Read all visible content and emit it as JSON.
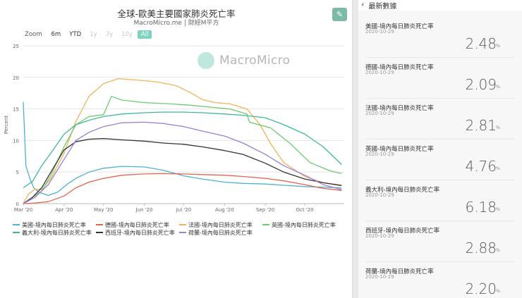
{
  "chart": {
    "title": "全球-歐美主要國家肺炎死亡率",
    "subtitle": "MacroMicro.me | 財經M平方",
    "edit_icon": "pencil-icon",
    "range_label": "Zoom",
    "range_buttons": [
      {
        "label": "6m",
        "state": "normal"
      },
      {
        "label": "YTD",
        "state": "normal"
      },
      {
        "label": "1y",
        "state": "disabled"
      },
      {
        "label": "3y",
        "state": "disabled"
      },
      {
        "label": "10y",
        "state": "disabled"
      },
      {
        "label": "All",
        "state": "active"
      }
    ],
    "watermark": "MacroMicro"
  },
  "chart_data": {
    "type": "line",
    "ylabel": "Percent",
    "ylim": [
      0,
      25
    ],
    "yticks": [
      "0",
      "5",
      "10",
      "15",
      "20",
      "25"
    ],
    "x_start": "2020-03-01",
    "x_end": "2020-10-31",
    "xticks": [
      {
        "label": "Mar '20",
        "date": "2020-03-01"
      },
      {
        "label": "Apr '20",
        "date": "2020-04-01"
      },
      {
        "label": "May '20",
        "date": "2020-05-01"
      },
      {
        "label": "Jun '20",
        "date": "2020-06-01"
      },
      {
        "label": "Jul '20",
        "date": "2020-07-01"
      },
      {
        "label": "Aug '20",
        "date": "2020-08-01"
      },
      {
        "label": "Sep '20",
        "date": "2020-09-01"
      },
      {
        "label": "Oct '20",
        "date": "2020-10-01"
      }
    ],
    "grid": true,
    "legend_position": "bottom",
    "series": [
      {
        "name": "美國-境內每日肺炎死亡率",
        "color": "#4fb0d5",
        "points": [
          [
            "2020-03-01",
            16.1
          ],
          [
            "2020-03-03",
            6.0
          ],
          [
            "2020-03-06",
            4.0
          ],
          [
            "2020-03-09",
            2.5
          ],
          [
            "2020-03-13",
            1.8
          ],
          [
            "2020-03-20",
            1.3
          ],
          [
            "2020-03-27",
            1.8
          ],
          [
            "2020-04-03",
            3.0
          ],
          [
            "2020-04-10",
            4.0
          ],
          [
            "2020-04-20",
            5.0
          ],
          [
            "2020-05-01",
            5.6
          ],
          [
            "2020-05-15",
            5.9
          ],
          [
            "2020-06-01",
            5.8
          ],
          [
            "2020-06-15",
            5.3
          ],
          [
            "2020-07-01",
            4.4
          ],
          [
            "2020-07-15",
            3.9
          ],
          [
            "2020-08-01",
            3.4
          ],
          [
            "2020-08-15",
            3.2
          ],
          [
            "2020-09-01",
            3.1
          ],
          [
            "2020-09-15",
            2.9
          ],
          [
            "2020-10-01",
            2.7
          ],
          [
            "2020-10-15",
            2.6
          ],
          [
            "2020-10-29",
            2.48
          ]
        ]
      },
      {
        "name": "德國-境內每日肺炎死亡率",
        "color": "#e2664e",
        "points": [
          [
            "2020-03-01",
            0.0
          ],
          [
            "2020-03-10",
            0.1
          ],
          [
            "2020-03-20",
            0.3
          ],
          [
            "2020-04-01",
            1.2
          ],
          [
            "2020-04-10",
            2.5
          ],
          [
            "2020-04-20",
            3.4
          ],
          [
            "2020-05-01",
            4.0
          ],
          [
            "2020-05-15",
            4.5
          ],
          [
            "2020-06-01",
            4.7
          ],
          [
            "2020-06-15",
            4.75
          ],
          [
            "2020-07-01",
            4.7
          ],
          [
            "2020-07-15",
            4.6
          ],
          [
            "2020-08-01",
            4.5
          ],
          [
            "2020-08-15",
            4.3
          ],
          [
            "2020-09-01",
            4.0
          ],
          [
            "2020-09-15",
            3.6
          ],
          [
            "2020-10-01",
            3.0
          ],
          [
            "2020-10-15",
            2.4
          ],
          [
            "2020-10-29",
            2.09
          ]
        ]
      },
      {
        "name": "法國-境內每日肺炎死亡率",
        "color": "#f2b25a",
        "points": [
          [
            "2020-03-01",
            0.0
          ],
          [
            "2020-03-05",
            1.5
          ],
          [
            "2020-03-10",
            2.3
          ],
          [
            "2020-03-15",
            2.2
          ],
          [
            "2020-03-22",
            4.0
          ],
          [
            "2020-04-01",
            8.0
          ],
          [
            "2020-04-10",
            13.0
          ],
          [
            "2020-04-20",
            17.0
          ],
          [
            "2020-05-01",
            19.0
          ],
          [
            "2020-05-12",
            19.8
          ],
          [
            "2020-05-25",
            19.6
          ],
          [
            "2020-06-10",
            19.3
          ],
          [
            "2020-06-25",
            18.7
          ],
          [
            "2020-07-05",
            17.7
          ],
          [
            "2020-07-15",
            16.5
          ],
          [
            "2020-07-25",
            16.0
          ],
          [
            "2020-08-05",
            15.8
          ],
          [
            "2020-08-18",
            15.0
          ],
          [
            "2020-08-28",
            12.5
          ],
          [
            "2020-09-05",
            9.5
          ],
          [
            "2020-09-15",
            6.5
          ],
          [
            "2020-10-01",
            4.3
          ],
          [
            "2020-10-15",
            3.3
          ],
          [
            "2020-10-29",
            2.81
          ]
        ]
      },
      {
        "name": "英國-境內每日肺炎死亡率",
        "color": "#6ccb6d",
        "points": [
          [
            "2020-03-01",
            0.0
          ],
          [
            "2020-03-08",
            1.0
          ],
          [
            "2020-03-15",
            2.0
          ],
          [
            "2020-03-22",
            4.5
          ],
          [
            "2020-04-01",
            9.0
          ],
          [
            "2020-04-10",
            12.5
          ],
          [
            "2020-04-20",
            13.8
          ],
          [
            "2020-05-01",
            14.1
          ],
          [
            "2020-05-07",
            17.0
          ],
          [
            "2020-05-15",
            16.4
          ],
          [
            "2020-06-01",
            16.0
          ],
          [
            "2020-06-20",
            15.8
          ],
          [
            "2020-07-05",
            15.6
          ],
          [
            "2020-07-20",
            15.3
          ],
          [
            "2020-08-05",
            15.0
          ],
          [
            "2020-08-18",
            14.2
          ],
          [
            "2020-08-20",
            12.9
          ],
          [
            "2020-09-05",
            12.0
          ],
          [
            "2020-09-20",
            9.5
          ],
          [
            "2020-10-05",
            6.5
          ],
          [
            "2020-10-20",
            5.2
          ],
          [
            "2020-10-29",
            4.76
          ]
        ]
      },
      {
        "name": "義大利-境內每日肺炎死亡率",
        "color": "#3cb89a",
        "points": [
          [
            "2020-03-01",
            2.5
          ],
          [
            "2020-03-08",
            3.5
          ],
          [
            "2020-03-15",
            6.0
          ],
          [
            "2020-03-22",
            8.0
          ],
          [
            "2020-04-01",
            11.0
          ],
          [
            "2020-04-10",
            12.5
          ],
          [
            "2020-04-20",
            13.2
          ],
          [
            "2020-05-01",
            13.8
          ],
          [
            "2020-05-15",
            14.2
          ],
          [
            "2020-06-01",
            14.4
          ],
          [
            "2020-06-15",
            14.5
          ],
          [
            "2020-07-01",
            14.5
          ],
          [
            "2020-07-15",
            14.4
          ],
          [
            "2020-08-01",
            14.2
          ],
          [
            "2020-08-15",
            14.0
          ],
          [
            "2020-09-01",
            13.6
          ],
          [
            "2020-09-15",
            12.5
          ],
          [
            "2020-10-01",
            11.0
          ],
          [
            "2020-10-15",
            9.0
          ],
          [
            "2020-10-29",
            6.18
          ]
        ]
      },
      {
        "name": "西班牙-境內每日肺炎死亡率",
        "color": "#333333",
        "points": [
          [
            "2020-03-01",
            0.0
          ],
          [
            "2020-03-08",
            1.0
          ],
          [
            "2020-03-15",
            2.5
          ],
          [
            "2020-03-22",
            5.0
          ],
          [
            "2020-04-01",
            8.5
          ],
          [
            "2020-04-10",
            9.8
          ],
          [
            "2020-04-20",
            10.2
          ],
          [
            "2020-05-01",
            10.3
          ],
          [
            "2020-05-15",
            10.1
          ],
          [
            "2020-06-01",
            9.9
          ],
          [
            "2020-06-15",
            9.6
          ],
          [
            "2020-07-01",
            9.4
          ],
          [
            "2020-07-15",
            9.0
          ],
          [
            "2020-08-01",
            8.4
          ],
          [
            "2020-08-15",
            7.8
          ],
          [
            "2020-09-01",
            6.4
          ],
          [
            "2020-09-15",
            5.0
          ],
          [
            "2020-10-01",
            3.9
          ],
          [
            "2020-10-15",
            3.3
          ],
          [
            "2020-10-29",
            2.88
          ]
        ]
      },
      {
        "name": "荷蘭-境內每日肺炎死亡率",
        "color": "#9b7ed8",
        "points": [
          [
            "2020-03-01",
            0.0
          ],
          [
            "2020-03-10",
            1.0
          ],
          [
            "2020-03-20",
            3.0
          ],
          [
            "2020-04-01",
            7.0
          ],
          [
            "2020-04-10",
            10.0
          ],
          [
            "2020-04-20",
            11.3
          ],
          [
            "2020-05-01",
            12.2
          ],
          [
            "2020-05-15",
            12.8
          ],
          [
            "2020-06-01",
            12.9
          ],
          [
            "2020-06-15",
            12.7
          ],
          [
            "2020-07-01",
            12.2
          ],
          [
            "2020-07-15",
            11.5
          ],
          [
            "2020-08-01",
            10.7
          ],
          [
            "2020-08-15",
            9.6
          ],
          [
            "2020-09-01",
            7.8
          ],
          [
            "2020-09-15",
            6.0
          ],
          [
            "2020-10-01",
            4.5
          ],
          [
            "2020-10-15",
            3.0
          ],
          [
            "2020-10-29",
            2.2
          ]
        ]
      }
    ]
  },
  "latest": {
    "header": "最新數據",
    "header_icon": "lightning-icon",
    "items": [
      {
        "name": "美國-境內每日肺炎死亡率",
        "date": "2020-10-29",
        "value": "2.48",
        "unit": "%"
      },
      {
        "name": "德國-境內每日肺炎死亡率",
        "date": "2020-10-29",
        "value": "2.09",
        "unit": "%"
      },
      {
        "name": "法國-境內每日肺炎死亡率",
        "date": "2020-10-29",
        "value": "2.81",
        "unit": "%"
      },
      {
        "name": "英國-境內每日肺炎死亡率",
        "date": "2020-10-29",
        "value": "4.76",
        "unit": "%"
      },
      {
        "name": "義大利-境內每日肺炎死亡率",
        "date": "2020-10-29",
        "value": "6.18",
        "unit": "%"
      },
      {
        "name": "西班牙-境內每日肺炎死亡率",
        "date": "2020-10-29",
        "value": "2.88",
        "unit": "%"
      },
      {
        "name": "荷蘭-境內每日肺炎死亡率",
        "date": "2020-10-29",
        "value": "2.20",
        "unit": "%"
      }
    ]
  }
}
